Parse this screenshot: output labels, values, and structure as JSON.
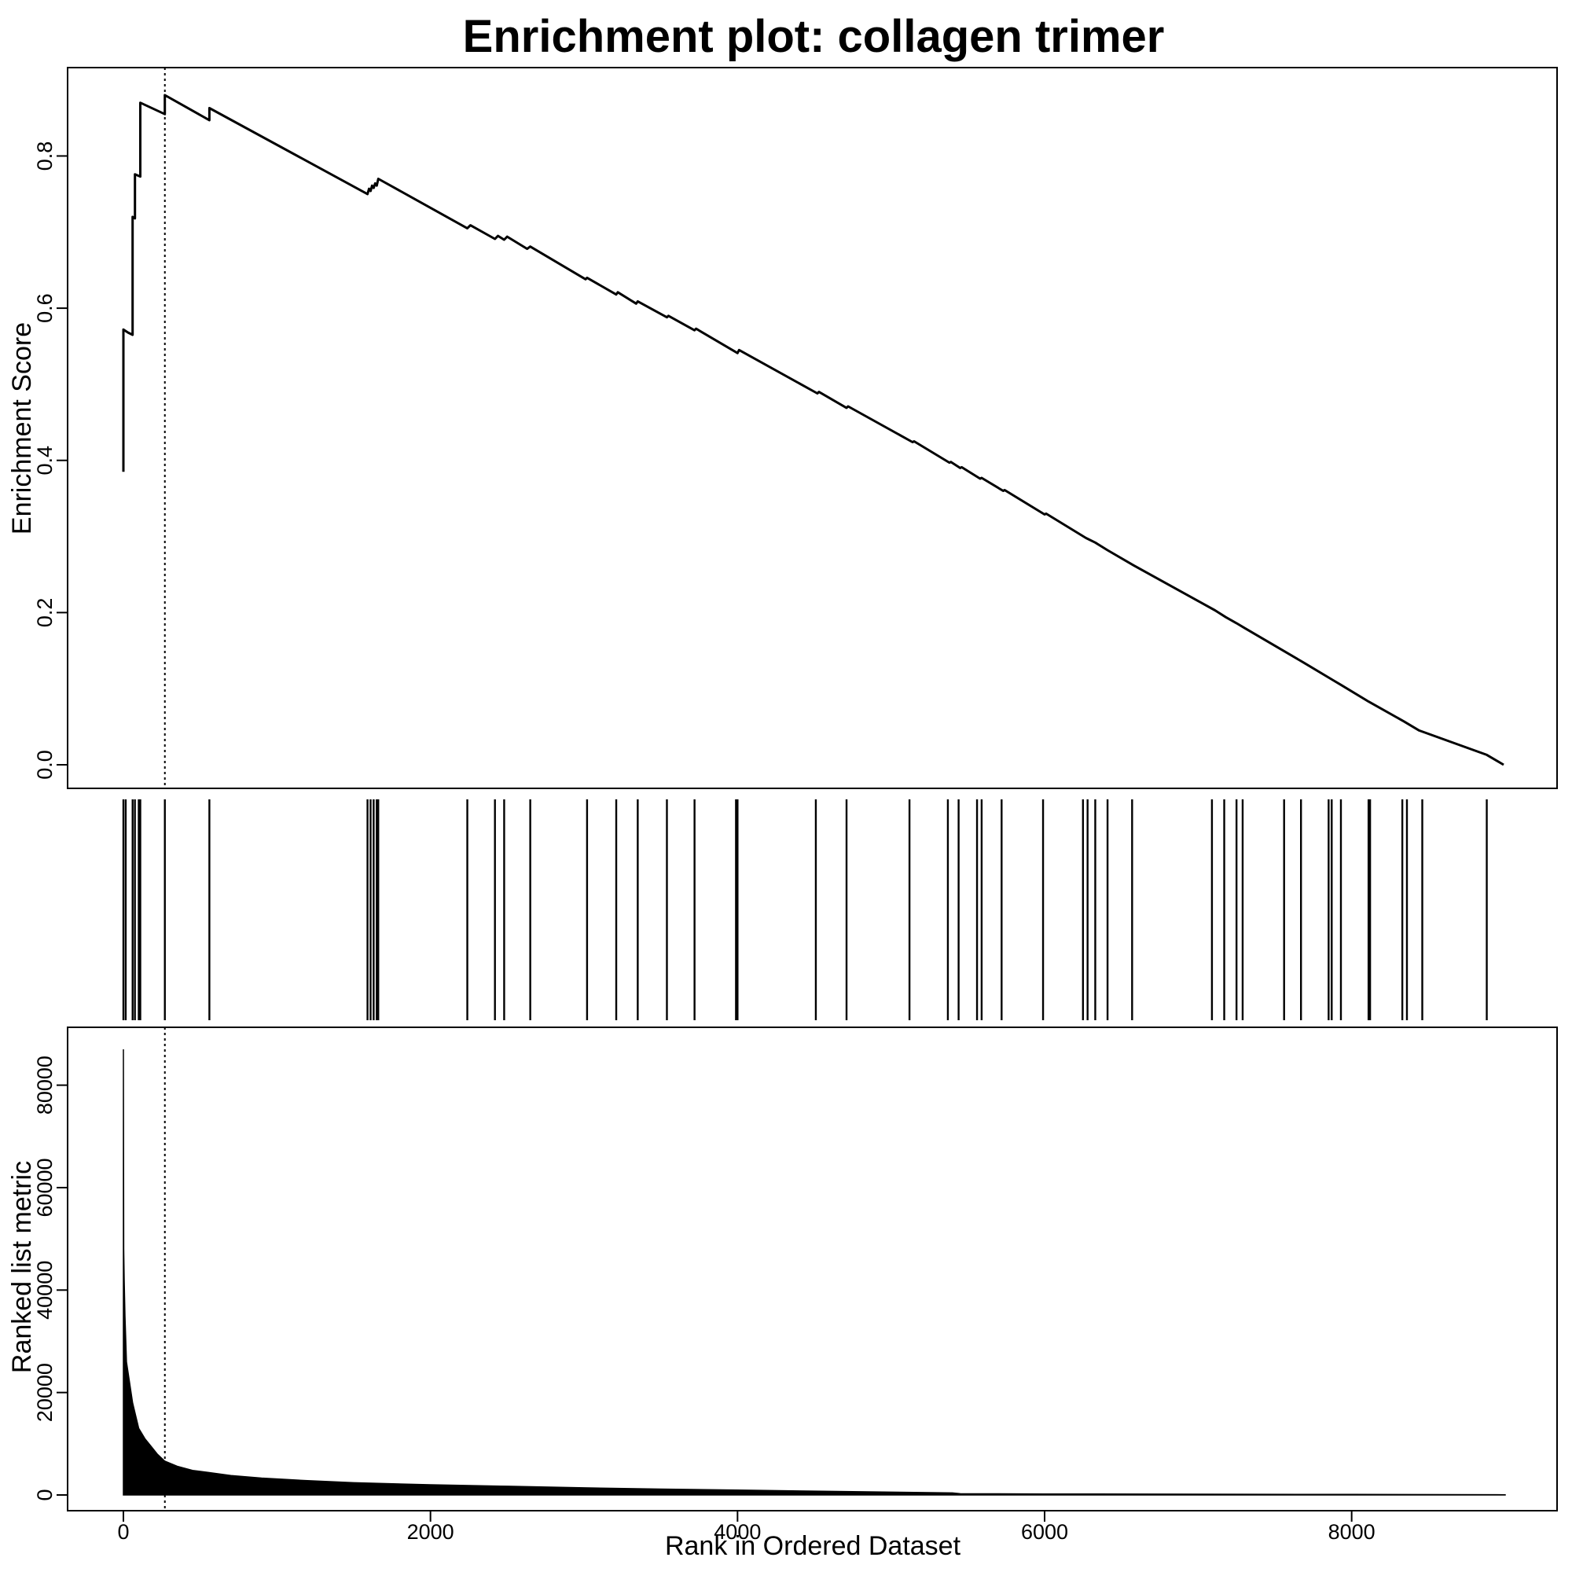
{
  "chart_data": [
    {
      "type": "line",
      "title": "Enrichment plot: collagen trimer",
      "ylabel": "Enrichment Score",
      "xlim": [
        0,
        9000
      ],
      "ylim": [
        0,
        0.88
      ],
      "yticks": [
        "0.0",
        "0.2",
        "0.4",
        "0.6",
        "0.8"
      ],
      "grid": false,
      "series": [
        {
          "x": [
            0,
            0,
            0,
            30,
            60,
            60,
            60,
            75,
            75,
            110,
            110,
            270,
            270,
            560,
            560,
            1590,
            1600,
            1610,
            1620,
            1630,
            1640,
            1650,
            1660,
            2240,
            2260,
            2420,
            2440,
            2480,
            2500,
            2630,
            2650,
            3010,
            3020,
            3210,
            3220,
            3340,
            3350,
            3540,
            3550,
            3720,
            3730,
            4000,
            4010,
            4520,
            4530,
            4710,
            4720,
            5140,
            5150,
            5380,
            5390,
            5450,
            5460,
            5580,
            5590,
            5730,
            5740,
            6000,
            6010,
            6270,
            6330,
            6410,
            6580,
            7110,
            7180,
            7250,
            7300,
            7580,
            7690,
            7880,
            7930,
            8110,
            8340,
            8440,
            8880,
            8990
          ],
          "y": [
            0.385,
            0.572,
            0.572,
            0.568,
            0.565,
            0.65,
            0.72,
            0.718,
            0.776,
            0.773,
            0.87,
            0.855,
            0.88,
            0.847,
            0.863,
            0.75,
            0.757,
            0.754,
            0.761,
            0.758,
            0.764,
            0.761,
            0.77,
            0.705,
            0.709,
            0.691,
            0.695,
            0.69,
            0.694,
            0.678,
            0.681,
            0.638,
            0.64,
            0.618,
            0.621,
            0.606,
            0.609,
            0.588,
            0.59,
            0.571,
            0.573,
            0.541,
            0.545,
            0.488,
            0.49,
            0.469,
            0.471,
            0.424,
            0.425,
            0.397,
            0.398,
            0.39,
            0.391,
            0.376,
            0.377,
            0.36,
            0.361,
            0.329,
            0.33,
            0.298,
            0.292,
            0.282,
            0.262,
            0.203,
            0.194,
            0.186,
            0.18,
            0.147,
            0.134,
            0.111,
            0.105,
            0.083,
            0.057,
            0.045,
            0.013,
            0.0
          ]
        }
      ],
      "annotations": [
        {
          "type": "vertical-dotted-line",
          "x": 270
        }
      ]
    },
    {
      "type": "bar",
      "name": "gene-set hits",
      "xlim": [
        0,
        9000
      ],
      "hits": [
        0,
        15,
        60,
        75,
        100,
        110,
        270,
        560,
        1590,
        1610,
        1630,
        1650,
        1660,
        2240,
        2420,
        2480,
        2650,
        3020,
        3210,
        3350,
        3540,
        3720,
        3990,
        4000,
        4510,
        4710,
        5120,
        5370,
        5440,
        5560,
        5590,
        5720,
        5990,
        6250,
        6280,
        6330,
        6410,
        6570,
        7090,
        7170,
        7250,
        7290,
        7560,
        7670,
        7850,
        7870,
        7930,
        8110,
        8120,
        8330,
        8360,
        8460,
        8880
      ]
    },
    {
      "type": "area",
      "xlabel": "Rank in Ordered Dataset",
      "ylabel": "Ranked list metric",
      "xlim": [
        0,
        9000
      ],
      "ylim": [
        0,
        87000
      ],
      "xticks": [
        "0",
        "2000",
        "4000",
        "6000",
        "8000"
      ],
      "yticks": [
        "0",
        "20000",
        "40000",
        "60000",
        "80000"
      ],
      "grid": false,
      "x": [
        0,
        2,
        5,
        10,
        20,
        40,
        60,
        80,
        100,
        140,
        180,
        220,
        270,
        350,
        450,
        550,
        700,
        900,
        1200,
        1500,
        2000,
        2500,
        3000,
        3500,
        4000,
        4500,
        5000,
        5400,
        5450,
        6000,
        7000,
        8000,
        9000
      ],
      "values": [
        87000,
        48000,
        42000,
        35000,
        26000,
        22000,
        18000,
        15500,
        13000,
        11000,
        9500,
        8000,
        6600,
        5600,
        4800,
        4400,
        3800,
        3300,
        2800,
        2400,
        2000,
        1700,
        1400,
        1150,
        950,
        750,
        550,
        400,
        250,
        200,
        150,
        100,
        50
      ],
      "annotations": [
        {
          "type": "vertical-dotted-line",
          "x": 270
        }
      ]
    }
  ]
}
